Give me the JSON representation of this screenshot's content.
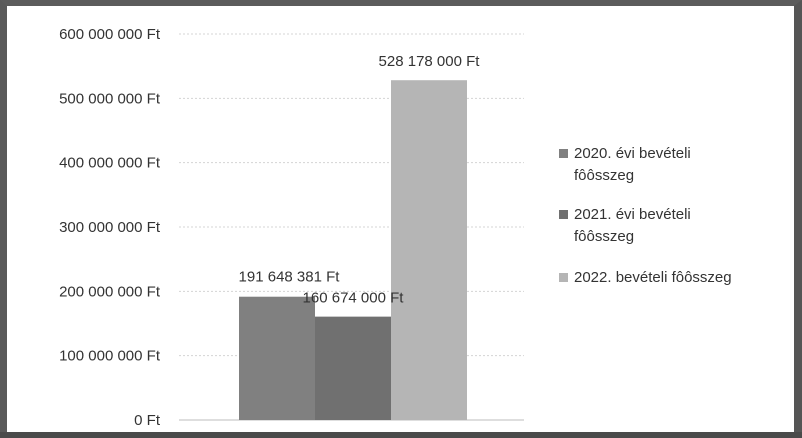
{
  "chart_data": {
    "type": "bar",
    "title": "",
    "xlabel": "",
    "ylabel": "",
    "ylim": [
      0,
      600000000
    ],
    "y_ticks": [
      {
        "value": 0,
        "label": "0 Ft"
      },
      {
        "value": 100000000,
        "label": "100 000 000 Ft"
      },
      {
        "value": 200000000,
        "label": "200 000 000 Ft"
      },
      {
        "value": 300000000,
        "label": "300 000 000 Ft"
      },
      {
        "value": 400000000,
        "label": "400 000 000 Ft"
      },
      {
        "value": 500000000,
        "label": "500 000 000 Ft"
      },
      {
        "value": 600000000,
        "label": "600 000 000 Ft"
      }
    ],
    "grid": true,
    "legend_position": "right",
    "series": [
      {
        "name": "2020. évi bevételi fôôsszeg",
        "legend_lines": [
          "2020. évi bevételi",
          "fôôsszeg"
        ],
        "value": 191648381,
        "data_label": "191 648 381 Ft",
        "color": "#808080"
      },
      {
        "name": "2021. évi bevételi fôôsszeg",
        "legend_lines": [
          "2021. évi bevételi",
          "fôôsszeg"
        ],
        "value": 160674000,
        "data_label": "160 674 000 Ft",
        "color": "#707070"
      },
      {
        "name": "2022. bevételi fôôsszeg",
        "legend_lines": [
          "2022. bevételi fôôsszeg"
        ],
        "value": 528178000,
        "data_label": "528 178 000 Ft",
        "color": "#b5b5b5"
      }
    ]
  }
}
